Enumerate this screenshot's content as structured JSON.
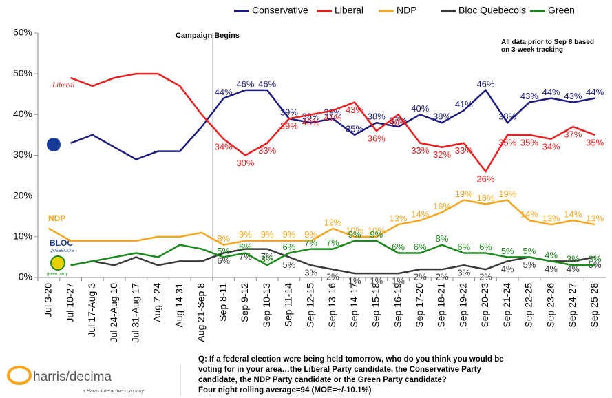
{
  "chart_data": {
    "type": "line",
    "categories": [
      "Jul 3-20",
      "Jul 10-27",
      "Jul 17-Aug 3",
      "Jul 24-Aug 10",
      "Jul 31-Aug 17",
      "Aug 7-24",
      "Aug 14-31",
      "Aug 21-Sep 8",
      "Sep 8-11",
      "Sep 9-12",
      "Sep 10-13",
      "Sep 11-14",
      "Sep 12-15",
      "Sep 13-16",
      "Sep 14-17",
      "Sep 15-18",
      "Sep 16-19",
      "Sep 17-20",
      "Sep 18-21",
      "Sep 19-22",
      "Sep 20-23",
      "Sep 21-24",
      "Sep 22-25",
      "Sep 23-26",
      "Sep 24-27",
      "Sep 25-28"
    ],
    "series": [
      {
        "name": "Conservative",
        "color": "#1a1a80",
        "values": [
          null,
          33,
          35,
          32,
          29,
          31,
          31,
          37,
          44,
          46,
          46,
          39,
          38,
          39,
          35,
          38,
          37,
          40,
          38,
          41,
          46,
          38,
          43,
          44,
          43,
          44
        ],
        "value_labels": [
          null,
          null,
          null,
          null,
          null,
          null,
          null,
          null,
          "44%",
          "46%",
          "46%",
          "39%",
          "38%",
          "39%",
          "35%",
          "38%",
          "37%",
          "40%",
          "38%",
          "41%",
          "46%",
          "38%",
          "43%",
          "44%",
          "43%",
          "44%"
        ]
      },
      {
        "name": "Liberal",
        "color": "#ee1c1c",
        "values": [
          null,
          49,
          47,
          49,
          50,
          50,
          47,
          40,
          34,
          30,
          33,
          39,
          40,
          41,
          43,
          36,
          40,
          33,
          32,
          33,
          26,
          35,
          35,
          34,
          37,
          35
        ],
        "value_labels": [
          null,
          null,
          null,
          null,
          null,
          null,
          null,
          null,
          "34%",
          "30%",
          "33%",
          "39%",
          "40%",
          "41%",
          "43%",
          "36%",
          "40%",
          "33%",
          "32%",
          "33%",
          "26%",
          "35%",
          "35%",
          "34%",
          "37%",
          "35%"
        ]
      },
      {
        "name": "NDP",
        "color": "#f7a51c",
        "values": [
          12,
          9,
          9,
          9,
          9,
          10,
          10,
          11,
          8,
          9,
          9,
          9,
          9,
          12,
          10,
          10,
          13,
          14,
          16,
          19,
          18,
          19,
          14,
          13,
          14,
          13
        ],
        "value_labels": [
          null,
          null,
          null,
          null,
          null,
          null,
          null,
          null,
          "8%",
          "9%",
          "9%",
          "9%",
          "9%",
          "12%",
          "10%",
          "10%",
          "13%",
          "14%",
          "16%",
          "19%",
          "18%",
          "19%",
          "14%",
          "13%",
          "14%",
          "13%"
        ]
      },
      {
        "name": "Bloc Quebecois",
        "color": "#3a3a3a",
        "values": [
          null,
          3,
          4,
          3,
          5,
          3,
          4,
          4,
          6,
          7,
          7,
          5,
          3,
          2,
          1,
          1,
          1,
          2,
          2,
          3,
          2,
          4,
          5,
          4,
          4,
          5
        ],
        "value_labels": [
          null,
          null,
          null,
          null,
          null,
          null,
          null,
          null,
          "6%",
          "7%",
          "7%",
          "5%",
          "3%",
          "2%",
          "1%",
          "1%",
          "1%",
          "2%",
          "2%",
          "3%",
          "2%",
          "4%",
          "5%",
          "4%",
          "4%",
          "5%"
        ]
      },
      {
        "name": "Green",
        "color": "#1a8a1a",
        "values": [
          null,
          3,
          4,
          5,
          6,
          5,
          8,
          7,
          5,
          6,
          3,
          6,
          7,
          7,
          9,
          9,
          6,
          6,
          8,
          6,
          6,
          5,
          5,
          4,
          3,
          3
        ],
        "value_labels": [
          null,
          null,
          null,
          null,
          null,
          null,
          null,
          null,
          "5%",
          "6%",
          "3%",
          "6%",
          "7%",
          "7%",
          "9%",
          "9%",
          "6%",
          "6%",
          "8%",
          "6%",
          "6%",
          "5%",
          "5%",
          "4%",
          "3%",
          "3%"
        ]
      }
    ],
    "ylim": [
      0,
      60
    ],
    "yticks": [
      {
        "value": 0,
        "label": "0%"
      },
      {
        "value": 10,
        "label": "10%"
      },
      {
        "value": 20,
        "label": "20%"
      },
      {
        "value": 30,
        "label": "30%"
      },
      {
        "value": 40,
        "label": "40%"
      },
      {
        "value": 50,
        "label": "50%"
      },
      {
        "value": 60,
        "label": "60%"
      }
    ],
    "legend": "top",
    "annotations": [
      "Campaign Begins",
      "All data prior to Sep 8 based on 3-week tracking"
    ],
    "party_logos": [
      "Liberal",
      "NDP",
      "BLOC",
      "QUÉBÉCOIS",
      "green party"
    ],
    "question": [
      "Q: If a federal election were being held tomorrow, who do you think you would be",
      "voting for in your area…the Liberal Party candidate, the Conservative Party",
      "candidate, the NDP Party candidate or the Green Party candidate?",
      "Four night rolling average=94 (MOE=+/-10.1%)"
    ],
    "brand": "harris/decima",
    "brand_tagline": "a Harris Interactive company"
  }
}
